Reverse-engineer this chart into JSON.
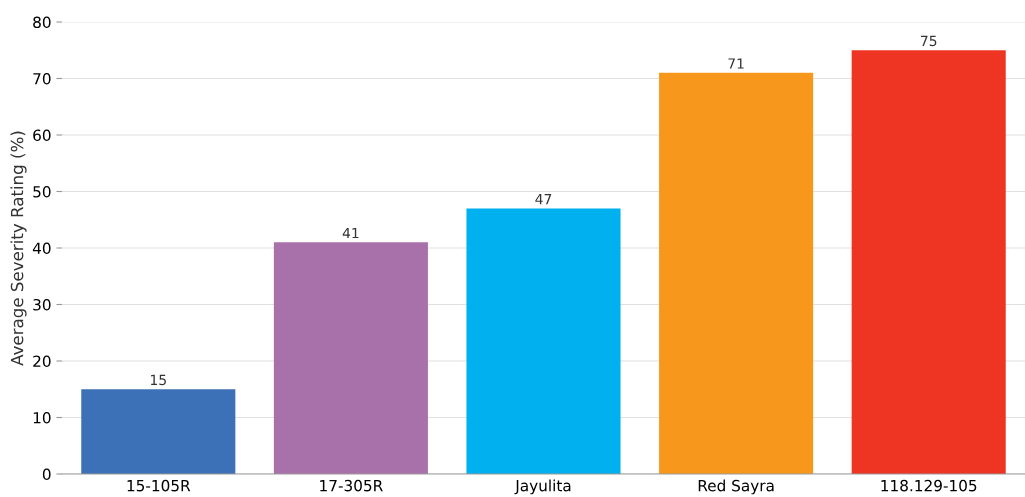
{
  "chart_data": {
    "type": "bar",
    "ylabel": "Average Severity Rating (%)",
    "categories": [
      "15-105R",
      "17-305R",
      "Jayulita",
      "Red Sayra",
      "118.129-105"
    ],
    "values": [
      15,
      41,
      47,
      71,
      75
    ],
    "colors": [
      "#3c71b7",
      "#a971aa",
      "#00b0ef",
      "#f7981d",
      "#ee3524"
    ],
    "ylim": [
      0,
      80
    ],
    "yticks": [
      0,
      10,
      20,
      30,
      40,
      50,
      60,
      70,
      80
    ],
    "grid": "y",
    "data_labels": true
  }
}
